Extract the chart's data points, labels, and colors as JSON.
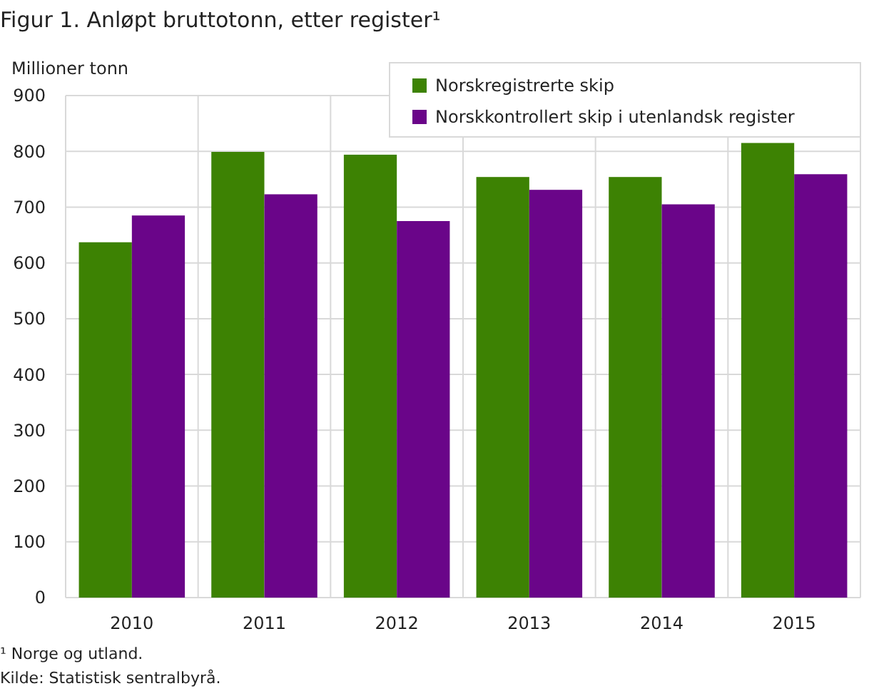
{
  "chart_data": {
    "type": "bar",
    "title": "Figur 1. Anløpt bruttotonn, etter register¹",
    "ylabel": "Millioner  tonn",
    "categories": [
      "2010",
      "2011",
      "2012",
      "2013",
      "2014",
      "2015"
    ],
    "series": [
      {
        "name": "Norskregistrerte skip",
        "color": "#3d8203",
        "values": [
          637,
          799,
          794,
          754,
          754,
          815
        ]
      },
      {
        "name": "Norskkontrollert skip i utenlandsk register",
        "color": "#6a0589",
        "values": [
          685,
          723,
          675,
          731,
          705,
          759
        ]
      }
    ],
    "ylim": [
      0,
      900
    ],
    "yticks": [
      0,
      100,
      200,
      300,
      400,
      500,
      600,
      700,
      800,
      900
    ],
    "grid": true,
    "legend": "top right",
    "annotations": [
      "¹ Norge og utland.",
      "Kilde: Statistisk sentralbyrå."
    ]
  }
}
